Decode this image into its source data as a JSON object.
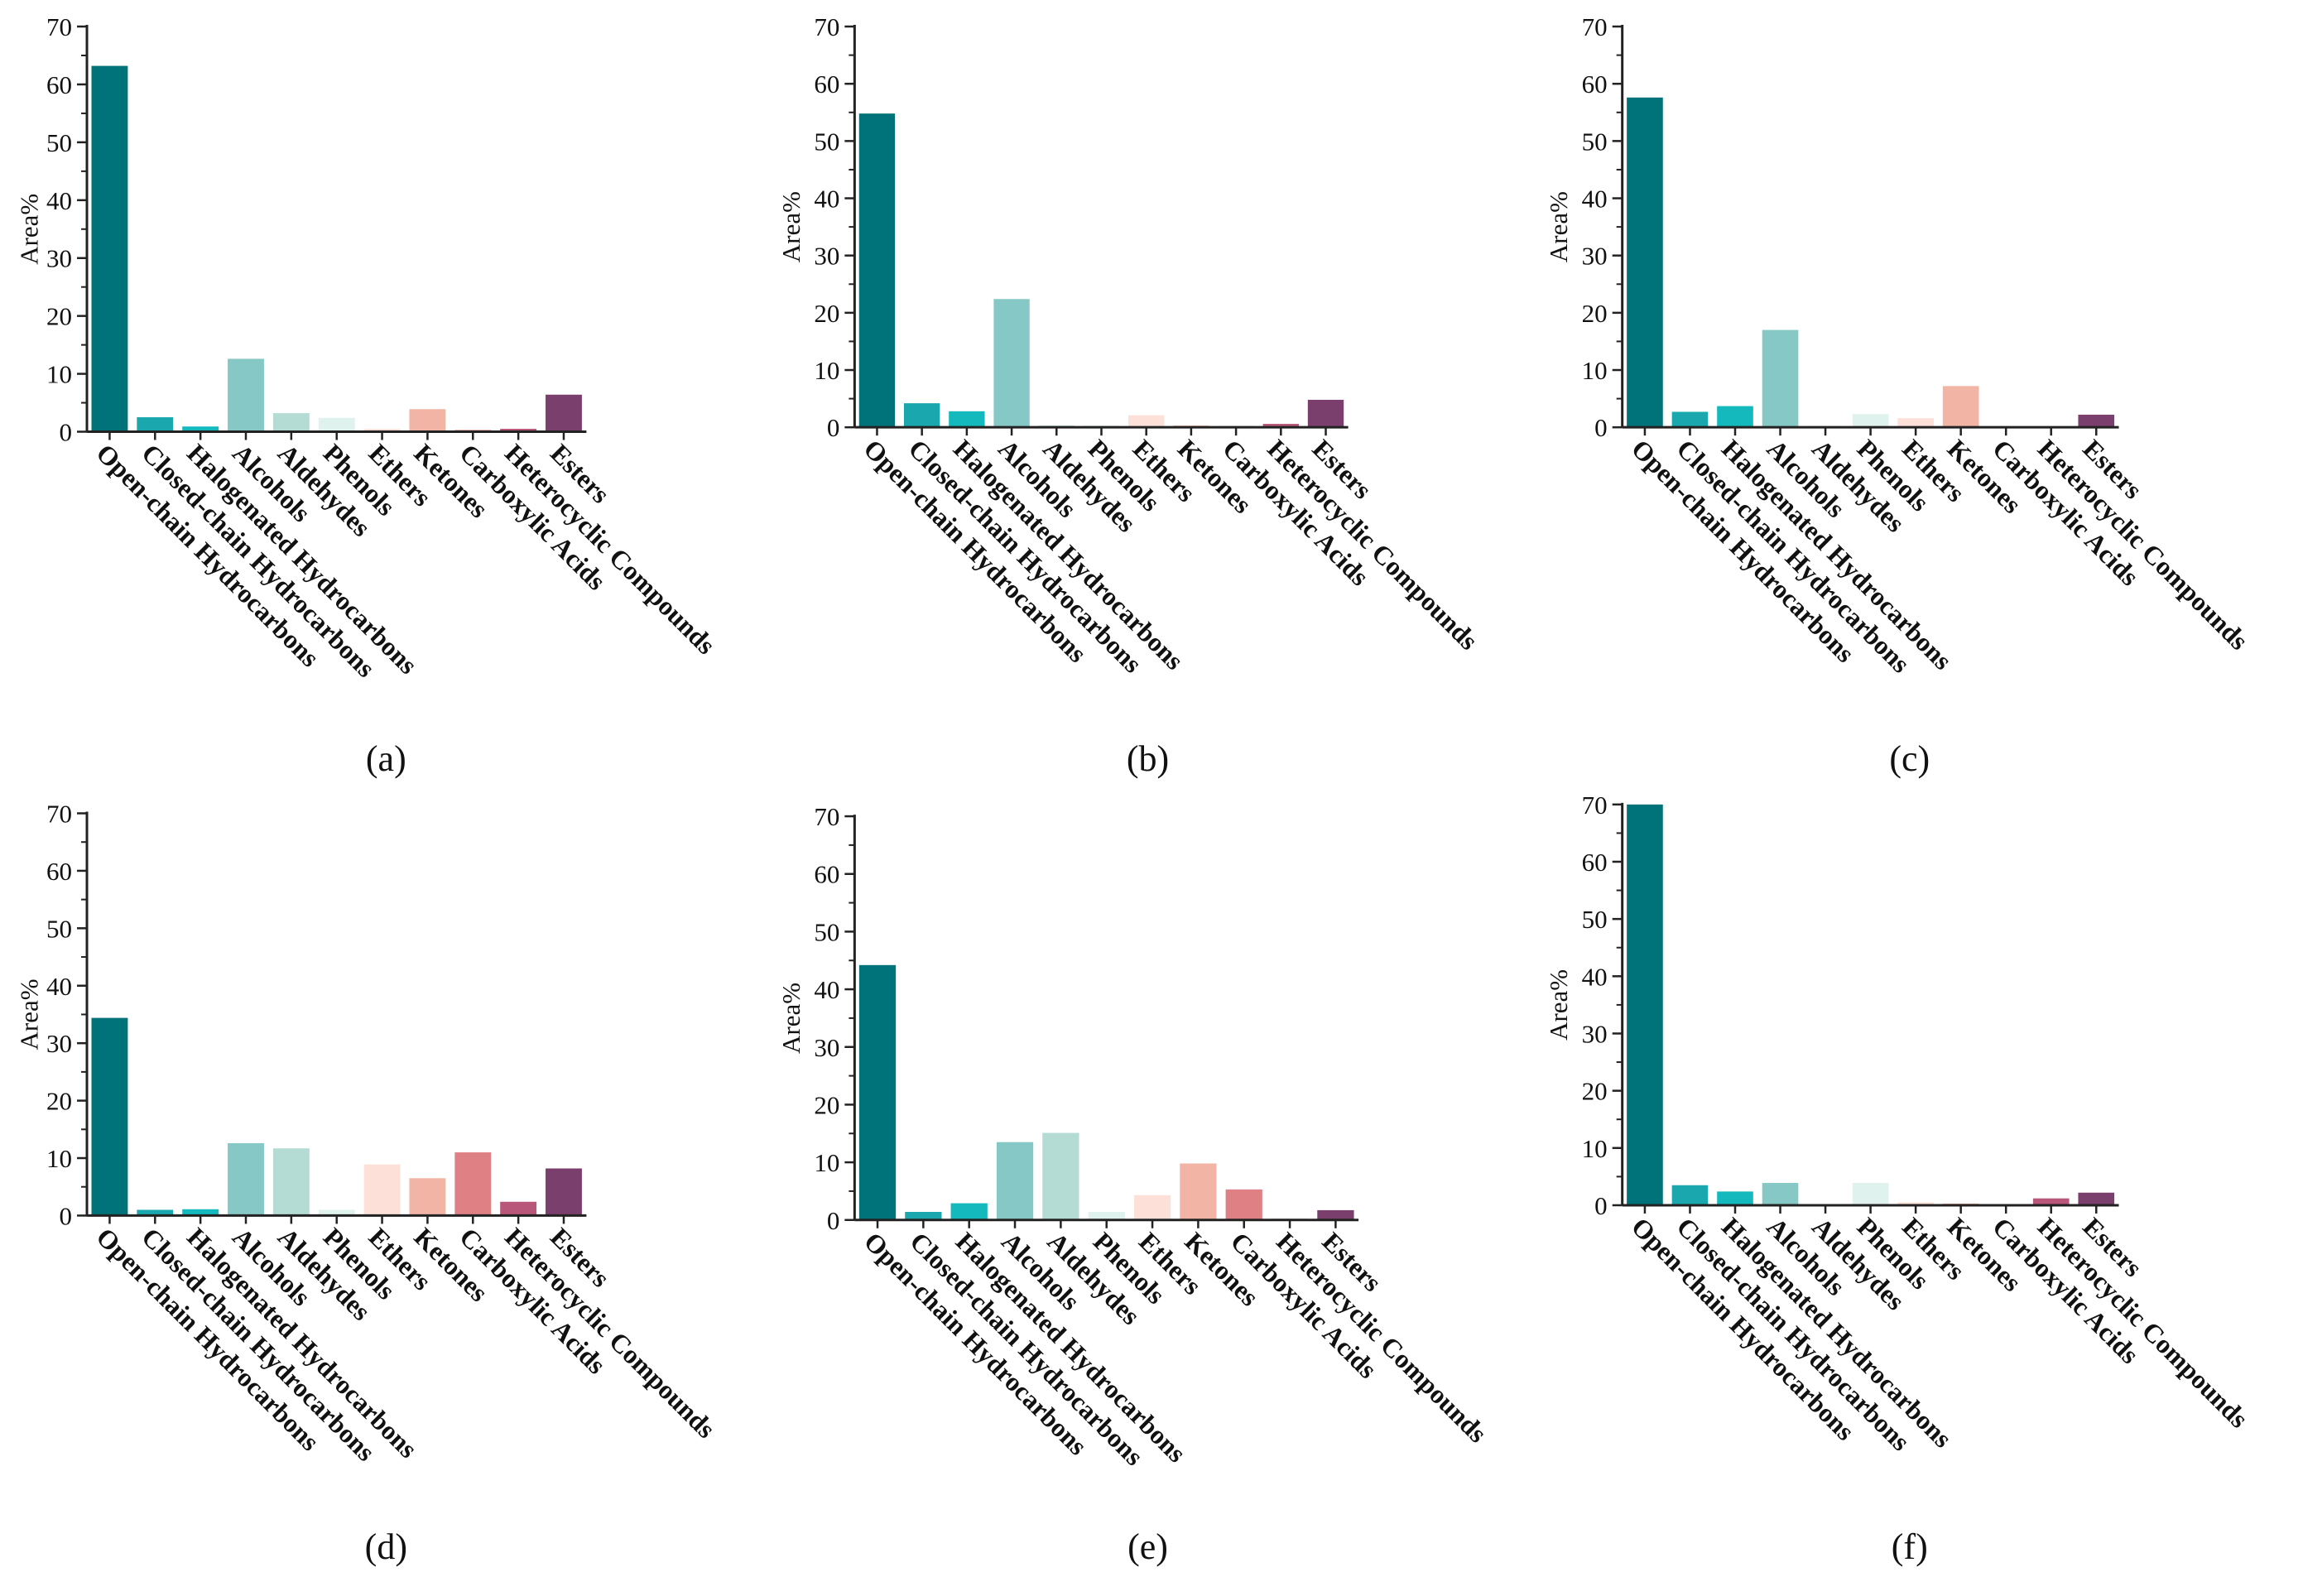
{
  "chart_data": [
    {
      "type": "bar",
      "panel": "(a)",
      "ylabel": "Area%",
      "ylim": [
        0,
        70
      ],
      "yticks": [
        0,
        10,
        20,
        30,
        40,
        50,
        60,
        70
      ],
      "categories": [
        "Open-chain Hydrocarbons",
        "Closed-chain Hydrocarbons",
        "Halogenated Hydrocarbons",
        "Alcohols",
        "Aldehydes",
        "Phenols",
        "Ethers",
        "Ketones",
        "Carboxylic Acids",
        "Heterocyclic Compounds",
        "Esters"
      ],
      "values": [
        63.2,
        2.5,
        0.9,
        12.6,
        3.2,
        2.4,
        0.5,
        3.9,
        0.3,
        0.5,
        6.4
      ]
    },
    {
      "type": "bar",
      "panel": "(b)",
      "ylabel": "Area%",
      "ylim": [
        0,
        70
      ],
      "yticks": [
        0,
        10,
        20,
        30,
        40,
        50,
        60,
        70
      ],
      "categories": [
        "Open-chain Hydrocarbons",
        "Closed-chain Hydrocarbons",
        "Halogenated Hydrocarbons",
        "Alcohols",
        "Aldehydes",
        "Phenols",
        "Ethers",
        "Ketones",
        "Carboxylic Acids",
        "Heterocyclic Compounds",
        "Esters"
      ],
      "values": [
        54.8,
        4.2,
        2.8,
        22.4,
        0.3,
        0.3,
        2.1,
        0.3,
        0.2,
        0.6,
        4.8
      ]
    },
    {
      "type": "bar",
      "panel": "(c)",
      "ylabel": "Area%",
      "ylim": [
        0,
        70
      ],
      "yticks": [
        0,
        10,
        20,
        30,
        40,
        50,
        60,
        70
      ],
      "categories": [
        "Open-chain Hydrocarbons",
        "Closed-chain Hydrocarbons",
        "Halogenated Hydrocarbons",
        "Alcohols",
        "Aldehydes",
        "Phenols",
        "Ethers",
        "Ketones",
        "Carboxylic Acids",
        "Heterocyclic Compounds",
        "Esters"
      ],
      "values": [
        57.6,
        2.7,
        3.7,
        17.0,
        0.2,
        2.3,
        1.6,
        7.2,
        0.1,
        0.1,
        2.2
      ]
    },
    {
      "type": "bar",
      "panel": "(d)",
      "ylabel": "Area%",
      "ylim": [
        0,
        70
      ],
      "yticks": [
        0,
        10,
        20,
        30,
        40,
        50,
        60,
        70
      ],
      "categories": [
        "Open-chain Hydrocarbons",
        "Closed-chain Hydrocarbons",
        "Halogenated Hydrocarbons",
        "Alcohols",
        "Aldehydes",
        "Phenols",
        "Ethers",
        "Ketones",
        "Carboxylic Acids",
        "Heterocyclic Compounds",
        "Esters"
      ],
      "values": [
        34.4,
        1.0,
        1.1,
        12.6,
        11.7,
        1.0,
        8.9,
        6.5,
        11.0,
        2.4,
        8.2
      ]
    },
    {
      "type": "bar",
      "panel": "(e)",
      "ylabel": "Area%",
      "ylim": [
        0,
        70
      ],
      "yticks": [
        0,
        10,
        20,
        30,
        40,
        50,
        60,
        70
      ],
      "categories": [
        "Open-chain Hydrocarbons",
        "Closed-chain Hydrocarbons",
        "Halogenated Hydrocarbons",
        "Alcohols",
        "Aldehydes",
        "Phenols",
        "Ethers",
        "Ketones",
        "Carboxylic Acids",
        "Heterocyclic Compounds",
        "Esters"
      ],
      "values": [
        44.2,
        1.4,
        2.9,
        13.5,
        15.1,
        1.4,
        4.3,
        9.8,
        5.3,
        0.2,
        1.7
      ]
    },
    {
      "type": "bar",
      "panel": "(f)",
      "ylabel": "Area%",
      "ylim": [
        0,
        70
      ],
      "yticks": [
        0,
        10,
        20,
        30,
        40,
        50,
        60,
        70
      ],
      "categories": [
        "Open-chain Hydrocarbons",
        "Closed-chain Hydrocarbons",
        "Halogenated Hydrocarbons",
        "Alcohols",
        "Aldehydes",
        "Phenols",
        "Ethers",
        "Ketones",
        "Carboxylic Acids",
        "Heterocyclic Compounds",
        "Esters"
      ],
      "values": [
        70.0,
        3.5,
        2.4,
        3.9,
        0.2,
        3.9,
        0.5,
        0.3,
        0.2,
        1.2,
        2.2
      ]
    }
  ],
  "colors": [
    "#00737a",
    "#1aa7ad",
    "#13b9bd",
    "#86c8c6",
    "#b4dcd5",
    "#e0f2ee",
    "#fde1d9",
    "#f2b4a4",
    "#df8184",
    "#b8577a",
    "#7b3f6e"
  ]
}
